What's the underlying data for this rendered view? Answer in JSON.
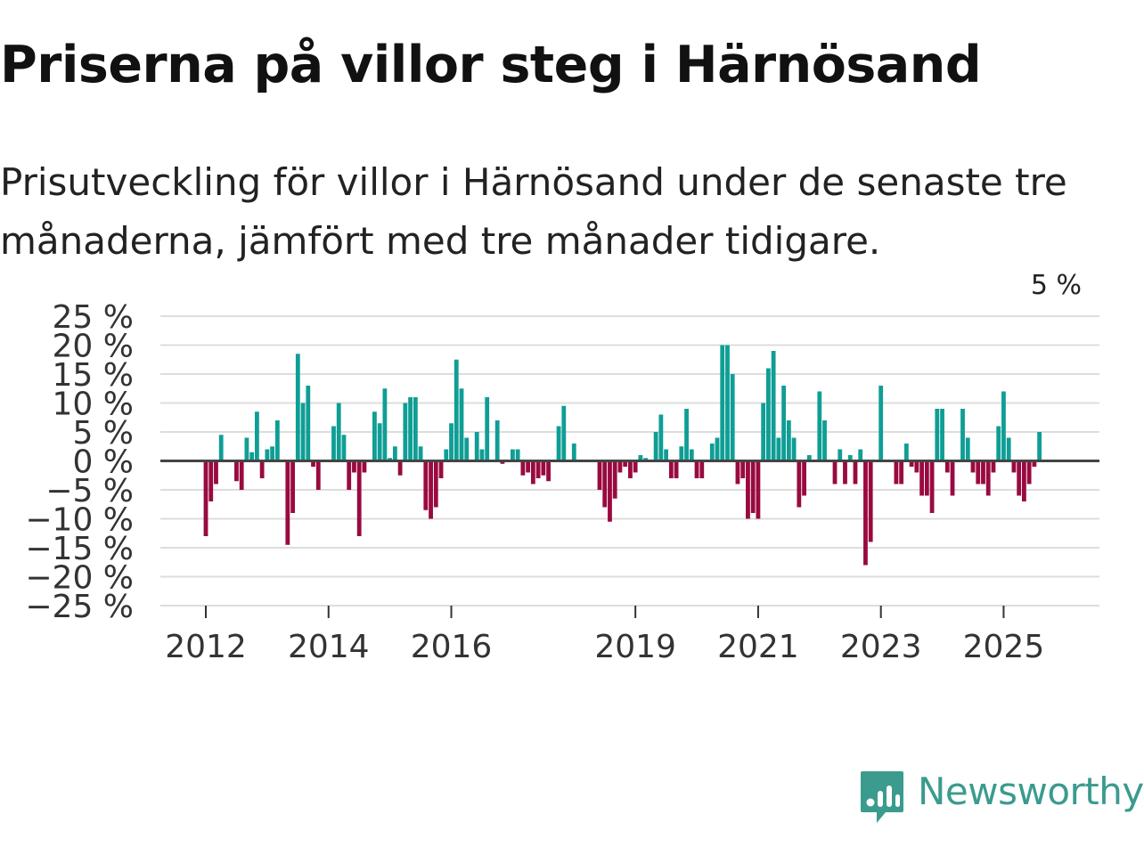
{
  "title": "Priserna på villor steg i Härnösand",
  "subtitle": "Prisutveckling för villor i Härnösand under de senaste tre månaderna, jämfört med tre månader tidigare.",
  "brand": {
    "name": "Newsworthy",
    "icon": "newsworthy-logo-icon",
    "color": "#3a9b8e"
  },
  "colors": {
    "positive": "#0f9e95",
    "negative": "#990a40",
    "grid": "#dddddd",
    "zero": "#444444"
  },
  "chart_data": {
    "type": "bar",
    "title": "",
    "xlabel": "",
    "ylabel": "",
    "ylim": [
      -25,
      25
    ],
    "y_ticks": [
      {
        "value": 25,
        "label": "25 %"
      },
      {
        "value": 20,
        "label": "20 %"
      },
      {
        "value": 15,
        "label": "15 %"
      },
      {
        "value": 10,
        "label": "10 %"
      },
      {
        "value": 5,
        "label": "5 %"
      },
      {
        "value": 0,
        "label": "0 %"
      },
      {
        "value": -5,
        "label": "−5 %"
      },
      {
        "value": -10,
        "label": "−10 %"
      },
      {
        "value": -15,
        "label": "−15 %"
      },
      {
        "value": -20,
        "label": "−20 %"
      },
      {
        "value": -25,
        "label": "−25 %"
      }
    ],
    "x_ticks": [
      {
        "label": "2012",
        "index": 0
      },
      {
        "label": "2014",
        "index": 24
      },
      {
        "label": "2016",
        "index": 48
      },
      {
        "label": "2019",
        "index": 84
      },
      {
        "label": "2021",
        "index": 108
      },
      {
        "label": "2023",
        "index": 132
      },
      {
        "label": "2025",
        "index": 156
      }
    ],
    "start_month": "2012-01",
    "values": [
      -13,
      -7,
      -4,
      4.5,
      0,
      0,
      -3.5,
      -5,
      4,
      1.5,
      8.5,
      -3,
      2,
      2.5,
      7,
      0,
      -14.5,
      -9,
      18.5,
      10,
      13,
      -1,
      -5,
      0,
      0,
      6,
      10,
      4.5,
      -5,
      -2,
      -13,
      -2,
      0,
      8.5,
      6.5,
      12.5,
      0.5,
      2.5,
      -2.5,
      10,
      11,
      11,
      2.5,
      -8.5,
      -10,
      -8,
      -3,
      2,
      6.5,
      17.5,
      12.5,
      4,
      0,
      5,
      2,
      11,
      0,
      7,
      -0.5,
      0,
      2,
      2,
      -2.5,
      -2,
      -4,
      -3,
      -2.5,
      -3.5,
      0,
      6,
      9.5,
      0,
      3,
      0,
      0,
      0,
      0,
      -5,
      -8,
      -10.5,
      -6.5,
      -2,
      -1,
      -3,
      -2,
      1,
      0.5,
      0,
      5,
      8,
      2,
      -3,
      -3,
      2.5,
      9,
      2,
      -3,
      -3,
      0,
      3,
      4,
      20,
      20,
      15,
      -4,
      -3,
      -10,
      -9,
      -10,
      10,
      16,
      19,
      4,
      13,
      7,
      4,
      -8,
      -6,
      1,
      0,
      12,
      7,
      0,
      -4,
      2,
      -4,
      1,
      -4,
      2,
      -18,
      -14,
      0,
      13,
      0,
      0,
      -4,
      -4,
      3,
      -1,
      -2,
      -6,
      -6,
      -9,
      9,
      9,
      -2,
      -6,
      0,
      9,
      4,
      -2,
      -4,
      -4,
      -6,
      -2,
      6,
      12,
      4,
      -2,
      -6,
      -7,
      -4,
      -1,
      5
    ],
    "annotations": [
      {
        "text": "5 %",
        "index": 166
      }
    ]
  }
}
